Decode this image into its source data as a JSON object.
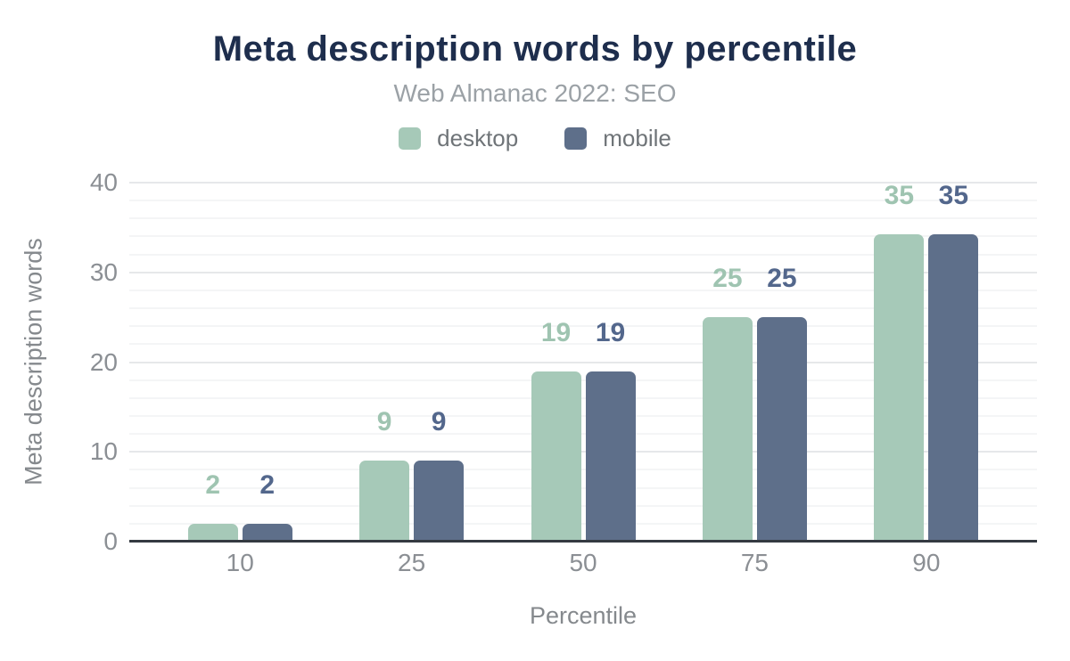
{
  "chart_data": {
    "type": "bar",
    "title": "Meta description words by percentile",
    "subtitle": "Web Almanac 2022: SEO",
    "title_color": "#1e2e4d",
    "categories": [
      "10",
      "25",
      "50",
      "75",
      "90"
    ],
    "series": [
      {
        "name": "desktop",
        "color": "#a6c9b8",
        "label_color": "#9fc4b1",
        "values": [
          2,
          9,
          19,
          25,
          35
        ]
      },
      {
        "name": "mobile",
        "color": "#5e6f8a",
        "label_color": "#53678c",
        "values": [
          2,
          9,
          19,
          25,
          35
        ]
      }
    ],
    "xlabel": "Percentile",
    "ylabel": "Meta description words",
    "ylim": [
      0,
      40
    ],
    "yticks": [
      0,
      10,
      20,
      30,
      40
    ],
    "minor_grid_step": 2,
    "grid": true,
    "legend_position": "top"
  }
}
